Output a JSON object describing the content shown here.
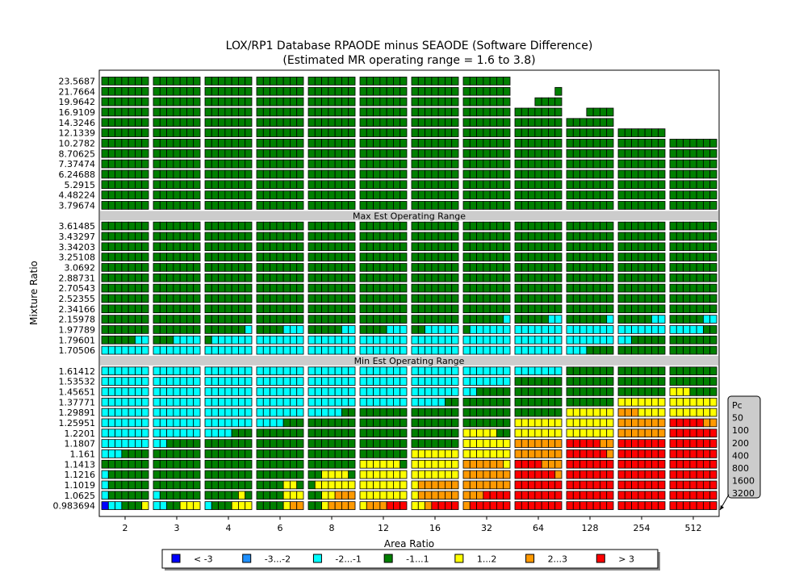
{
  "chart_data": {
    "type": "heatmap",
    "title": "LOX/RP1 Database RPAODE minus SEAODE (Software Difference)",
    "subtitle": "(Estimated MR operating range = 1.6 to 3.8)",
    "xlabel": "Area Ratio",
    "ylabel": "Mixture Ratio",
    "x_categories": [
      "2",
      "3",
      "4",
      "6",
      "8",
      "12",
      "16",
      "32",
      "64",
      "128",
      "254",
      "512"
    ],
    "y_groups": [
      {
        "labels": [
          "23.5687",
          "21.7664",
          "19.9642",
          "16.9109",
          "14.3246",
          "12.1339",
          "10.2782",
          "8.70625",
          "7.37474",
          "6.24688",
          "5.2915",
          "4.48224",
          "3.79674"
        ]
      },
      {
        "band": "Max Est Operating Range"
      },
      {
        "labels": [
          "3.61485",
          "3.43297",
          "3.34203",
          "3.25108",
          "3.0692",
          "2.88731",
          "2.70543",
          "2.52355",
          "2.34166",
          "2.15978",
          "1.97789",
          "1.79601",
          "1.70506"
        ]
      },
      {
        "band": "Min Est Operating Range"
      },
      {
        "labels": [
          "1.61412",
          "1.53532",
          "1.45651",
          "1.37771",
          "1.29891",
          "1.25951",
          "1.2201",
          "1.1807",
          "1.161",
          "1.1413",
          "1.1216",
          "1.1019",
          "1.0625",
          "0.983694"
        ]
      }
    ],
    "pc_legend": {
      "title": "Pc",
      "values": [
        "50",
        "100",
        "200",
        "400",
        "800",
        "1600",
        "3200"
      ]
    },
    "legend": [
      {
        "label": "< -3",
        "color": "#0000ff"
      },
      {
        "label": "-3...-2",
        "color": "#1e90ff"
      },
      {
        "label": "-2...-1",
        "color": "#00ffff"
      },
      {
        "label": "-1...1",
        "color": "#007f00"
      },
      {
        "label": "1...2",
        "color": "#ffff00"
      },
      {
        "label": "2...3",
        "color": "#ff9900"
      },
      {
        "label": "> 3",
        "color": "#ff0000"
      }
    ],
    "legend_placement": "bottom-center",
    "cell_codes": "B=<-3, D=-3...-2, C=-2...-1, G=-1...1, Y=1...2, O=2...3, R=>3, .=no data; each string lists 7 Pc values 50..3200",
    "rows": {
      "23.5687": [
        "GGGGGGG",
        "GGGGGGG",
        "GGGGGGG",
        "GGGGGGG",
        "GGGGGGG",
        "GGGGGGG",
        "GGGGGGG",
        "GGGGGGG",
        ".......",
        ".......",
        ".......",
        "......."
      ],
      "21.7664": [
        "GGGGGGG",
        "GGGGGGG",
        "GGGGGGG",
        "GGGGGGG",
        "GGGGGGG",
        "GGGGGGG",
        "GGGGGGG",
        "GGGGGGG",
        "......G",
        ".......",
        ".......",
        "......."
      ],
      "19.9642": [
        "GGGGGGG",
        "GGGGGGG",
        "GGGGGGG",
        "GGGGGGG",
        "GGGGGGG",
        "GGGGGGG",
        "GGGGGGG",
        "GGGGGGG",
        "...GGGG",
        ".......",
        ".......",
        "......."
      ],
      "16.9109": [
        "GGGGGGG",
        "GGGGGGG",
        "GGGGGGG",
        "GGGGGGG",
        "GGGGGGG",
        "GGGGGGG",
        "GGGGGGG",
        "GGGGGGG",
        "GGGGGGG",
        "...GGGG",
        ".......",
        "......."
      ],
      "14.3246": [
        "GGGGGGG",
        "GGGGGGG",
        "GGGGGGG",
        "GGGGGGG",
        "GGGGGGG",
        "GGGGGGG",
        "GGGGGGG",
        "GGGGGGG",
        "GGGGGGG",
        "GGGGGGG",
        ".......",
        "......."
      ],
      "12.1339": [
        "GGGGGGG",
        "GGGGGGG",
        "GGGGGGG",
        "GGGGGGG",
        "GGGGGGG",
        "GGGGGGG",
        "GGGGGGG",
        "GGGGGGG",
        "GGGGGGG",
        "GGGGGGG",
        "GGGGGGG",
        "......."
      ],
      "10.2782": [
        "GGGGGGG",
        "GGGGGGG",
        "GGGGGGG",
        "GGGGGGG",
        "GGGGGGG",
        "GGGGGGG",
        "GGGGGGG",
        "GGGGGGG",
        "GGGGGGG",
        "GGGGGGG",
        "GGGGGGG",
        "GGGGGGG"
      ],
      "8.70625": [
        "GGGGGGG",
        "GGGGGGG",
        "GGGGGGG",
        "GGGGGGG",
        "GGGGGGG",
        "GGGGGGG",
        "GGGGGGG",
        "GGGGGGG",
        "GGGGGGG",
        "GGGGGGG",
        "GGGGGGG",
        "GGGGGGG"
      ],
      "7.37474": [
        "GGGGGGG",
        "GGGGGGG",
        "GGGGGGG",
        "GGGGGGG",
        "GGGGGGG",
        "GGGGGGG",
        "GGGGGGG",
        "GGGGGGG",
        "GGGGGGG",
        "GGGGGGG",
        "GGGGGGG",
        "GGGGGGG"
      ],
      "6.24688": [
        "GGGGGGG",
        "GGGGGGG",
        "GGGGGGG",
        "GGGGGGG",
        "GGGGGGG",
        "GGGGGGG",
        "GGGGGGG",
        "GGGGGGG",
        "GGGGGGG",
        "GGGGGGG",
        "GGGGGGG",
        "GGGGGGG"
      ],
      "5.2915": [
        "GGGGGGG",
        "GGGGGGG",
        "GGGGGGG",
        "GGGGGGG",
        "GGGGGGG",
        "GGGGGGG",
        "GGGGGGG",
        "GGGGGGG",
        "GGGGGGG",
        "GGGGGGG",
        "GGGGGGG",
        "GGGGGGG"
      ],
      "4.48224": [
        "GGGGGGG",
        "GGGGGGG",
        "GGGGGGG",
        "GGGGGGG",
        "GGGGGGG",
        "GGGGGGG",
        "GGGGGGG",
        "GGGGGGG",
        "GGGGGGG",
        "GGGGGGG",
        "GGGGGGG",
        "GGGGGGG"
      ],
      "3.79674": [
        "GGGGGGG",
        "GGGGGGG",
        "GGGGGGG",
        "GGGGGGG",
        "GGGGGGG",
        "GGGGGGG",
        "GGGGGGG",
        "GGGGGGG",
        "GGGGGGG",
        "GGGGGGG",
        "GGGGGGG",
        "GGGGGGG"
      ],
      "3.61485": [
        "GGGGGGG",
        "GGGGGGG",
        "GGGGGGG",
        "GGGGGGG",
        "GGGGGGG",
        "GGGGGGG",
        "GGGGGGG",
        "GGGGGGG",
        "GGGGGGG",
        "GGGGGGG",
        "GGGGGGG",
        "GGGGGGG"
      ],
      "3.43297": [
        "GGGGGGG",
        "GGGGGGG",
        "GGGGGGG",
        "GGGGGGG",
        "GGGGGGG",
        "GGGGGGG",
        "GGGGGGG",
        "GGGGGGG",
        "GGGGGGG",
        "GGGGGGG",
        "GGGGGGG",
        "GGGGGGG"
      ],
      "3.34203": [
        "GGGGGGG",
        "GGGGGGG",
        "GGGGGGG",
        "GGGGGGG",
        "GGGGGGG",
        "GGGGGGG",
        "GGGGGGG",
        "GGGGGGG",
        "GGGGGGG",
        "GGGGGGG",
        "GGGGGGG",
        "GGGGGGG"
      ],
      "3.25108": [
        "GGGGGGG",
        "GGGGGGG",
        "GGGGGGG",
        "GGGGGGG",
        "GGGGGGG",
        "GGGGGGG",
        "GGGGGGG",
        "GGGGGGG",
        "GGGGGGG",
        "GGGGGGG",
        "GGGGGGG",
        "GGGGGGG"
      ],
      "3.0692": [
        "GGGGGGG",
        "GGGGGGG",
        "GGGGGGG",
        "GGGGGGG",
        "GGGGGGG",
        "GGGGGGG",
        "GGGGGGG",
        "GGGGGGG",
        "GGGGGGG",
        "GGGGGGG",
        "GGGGGGG",
        "GGGGGGG"
      ],
      "2.88731": [
        "GGGGGGG",
        "GGGGGGG",
        "GGGGGGG",
        "GGGGGGG",
        "GGGGGGG",
        "GGGGGGG",
        "GGGGGGG",
        "GGGGGGG",
        "GGGGGGG",
        "GGGGGGG",
        "GGGGGGG",
        "GGGGGGG"
      ],
      "2.70543": [
        "GGGGGGG",
        "GGGGGGG",
        "GGGGGGG",
        "GGGGGGG",
        "GGGGGGG",
        "GGGGGGG",
        "GGGGGGG",
        "GGGGGGG",
        "GGGGGGG",
        "GGGGGGG",
        "GGGGGGG",
        "GGGGGGG"
      ],
      "2.52355": [
        "GGGGGGG",
        "GGGGGGG",
        "GGGGGGG",
        "GGGGGGG",
        "GGGGGGG",
        "GGGGGGG",
        "GGGGGGG",
        "GGGGGGG",
        "GGGGGGG",
        "GGGGGGG",
        "GGGGGGG",
        "GGGGGGG"
      ],
      "2.34166": [
        "GGGGGGG",
        "GGGGGGG",
        "GGGGGGG",
        "GGGGGGG",
        "GGGGGGG",
        "GGGGGGG",
        "GGGGGGG",
        "GGGGGGG",
        "GGGGGGG",
        "GGGGGGG",
        "GGGGGGG",
        "GGGGGGG"
      ],
      "2.15978": [
        "GGGGGGG",
        "GGGGGGG",
        "GGGGGGG",
        "GGGGGGG",
        "GGGGGGG",
        "GGGGGGG",
        "GGGGGGG",
        "GGGGGGC",
        "GGGGGCC",
        "GGGGGGC",
        "GGGGGCC",
        "GGGGGCC"
      ],
      "1.97789": [
        "GGGGGGG",
        "GGGGGGG",
        "GGGGGGC",
        "GGGGCCC",
        "GGGGGCC",
        "GGGGCCC",
        "GGCCCCC",
        "GCCCCCC",
        "CCCCCCC",
        "CCCCCCC",
        "CCCCCCC",
        "CCCCCGG"
      ],
      "1.79601": [
        "GGGGGCC",
        "GGGCCCC",
        "GCCCCCC",
        "CCCCCCC",
        "CCCCCCC",
        "CCCCCCC",
        "CCCCCCC",
        "CCCCCCC",
        "CCCCCCC",
        "CCCCCCC",
        "CCGGGGG",
        "GGGGGGG"
      ],
      "1.70506": [
        "CCCCCCC",
        "CCCCCCC",
        "CCCCCCC",
        "CCCCCCC",
        "CCCCCCC",
        "CCCCCCC",
        "CCCCCCC",
        "CCCCCCC",
        "CCCCCCC",
        "CCCGGGG",
        "GGGGGGG",
        "GGGGGGG"
      ],
      "1.61412": [
        "CCCCCCC",
        "CCCCCCC",
        "CCCCCCC",
        "CCCCCCC",
        "CCCCCCC",
        "CCCCCCC",
        "CCCCCCC",
        "CCCCCCC",
        "CCCCCCC",
        "GGGGGGG",
        "GGGGGGG",
        "GGGGGGG"
      ],
      "1.53532": [
        "CCCCCCC",
        "CCCCCCC",
        "CCCCCCC",
        "CCCCCCC",
        "CCCCCCC",
        "CCCCCCC",
        "CCCCCCC",
        "CCCCCCC",
        "GGGGGGG",
        "GGGGGGG",
        "GGGGGGG",
        "GGGGGGG"
      ],
      "1.45651": [
        "CCCCCCC",
        "CCCCCCC",
        "CCCCCCC",
        "CCCCCCC",
        "CCCCCCC",
        "CCCCCCC",
        "CCCCCCC",
        "CCGGGGG",
        "GGGGGGG",
        "GGGGGGG",
        "GGGGGGG",
        "YYYGGGG"
      ],
      "1.37771": [
        "CCCCCCC",
        "CCCCCCC",
        "CCCCCCC",
        "CCCCCCC",
        "CCCCCCC",
        "CCCCCCC",
        "CCCCCGG",
        "GGGGGGG",
        "GGGGGGG",
        "GGGGGGG",
        "YYYYYYY",
        "YYYYYYY"
      ],
      "1.29891": [
        "CCCCCCC",
        "CCCCCCC",
        "CCCCCCC",
        "CCCCCCC",
        "CCCCCGG",
        "GGGGGGG",
        "GGGGGGG",
        "GGGGGGG",
        "GGGGGGG",
        "YYYYYYY",
        "OOOYYYY",
        "YYYYYYY"
      ],
      "1.25951": [
        "CCCCCCC",
        "CCCCCCC",
        "CCCCCCC",
        "CCCCGGG",
        "GGGGGGG",
        "GGGGGGG",
        "GGGGGGG",
        "GGGGGGG",
        "YYYYYYY",
        "YYYYYYY",
        "OOOOOOO",
        "RRRRROO"
      ],
      "1.2201": [
        "CCCCCCC",
        "CCCCCCC",
        "CCCCGGG",
        "GGGGGGG",
        "GGGGGGG",
        "GGGGGGG",
        "GGGGGGG",
        "YYYYYGG",
        "YYYYYYY",
        "YYYYYYY",
        "OOOOOOO",
        "RRRRRRR"
      ],
      "1.1807": [
        "CCCCCCC",
        "CCGGGGG",
        "GGGGGGG",
        "GGGGGGG",
        "GGGGGGG",
        "GGGGGGG",
        "GGGGGGG",
        "YYYYYYY",
        "OOOOOOO",
        "RRRRROO",
        "RRRRRRR",
        "RRRRRRR"
      ],
      "1.161": [
        "CCCGGGG",
        "GGGGGGG",
        "GGGGGGG",
        "GGGGGGG",
        "GGGGGGG",
        "GGGGGGG",
        "YYYYYYY",
        "YYYYYYY",
        "OOOOOOO",
        "RRRRRRO",
        "RRRRRRR",
        "RRRRRRR"
      ],
      "1.1413": [
        "GGGGGGG",
        "GGGGGGG",
        "GGGGGGG",
        "GGGGGGG",
        "GGGGGGG",
        "YYYYYYG",
        "YYYYYYY",
        "OOOOOOY",
        "RRRROOO",
        "RRRRRRR",
        "RRRRRRR",
        "RRRRRRR"
      ],
      "1.1216": [
        "CGGGGGG",
        "GGGGGGG",
        "GGGGGGG",
        "GGGGGGG",
        "GGYYYYG",
        "YYYYYYY",
        "YYYYYYY",
        "OOOOOOO",
        "RRRRRRO",
        "RRRRRRR",
        "RRRRRRR",
        "RRRRRRR"
      ],
      "1.1019": [
        "CGGGGGG",
        "GGGGGGG",
        "GGGGGGG",
        "GGGGYYG",
        "GYYYYYY",
        "YYYYYYY",
        "YOOOOOO",
        "OOOOOOO",
        "RRRRRRR",
        "RRRRRRR",
        "RRRRRRR",
        "RRRRRRR"
      ],
      "1.0625": [
        "CGGGGGG",
        "CGGGGGG",
        "GGGGGYG",
        "GGGGYYY",
        "GGYYOOO",
        "YYYYYYY",
        "YOOOOOO",
        "OOORRRR",
        "RRRRRRR",
        "RRRRRRR",
        "RRRRRRR",
        "RRRRRRR"
      ],
      "0.983694": [
        "BCCGGGY",
        "CCGGYYY",
        "CGGGYYY",
        "GGGGYOO",
        "GGYOOOO",
        "YOOORRR",
        "YYORRRR",
        "ORRRRRR",
        "RRRRRRR",
        "RRRRRRR",
        "RRRRRRR",
        "RRRRRRR"
      ]
    }
  }
}
